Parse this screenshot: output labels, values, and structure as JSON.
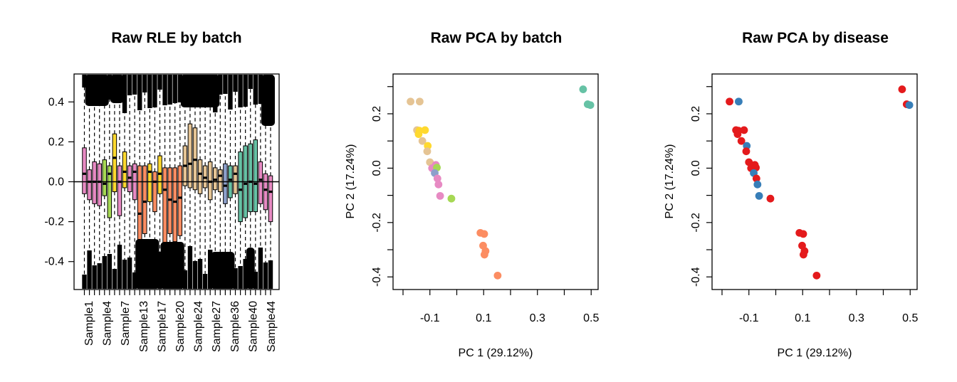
{
  "chart_data": [
    {
      "type": "box",
      "title": "Raw RLE by batch",
      "xlabel": "",
      "ylabel": "",
      "ylim": [
        -0.54,
        0.54
      ],
      "yticks": [
        -0.4,
        -0.2,
        0.0,
        0.2,
        0.4
      ],
      "ytick_labels": [
        "-0.4",
        "-0.2",
        "0.0",
        "0.2",
        "0.4"
      ],
      "xtick_labels": [
        "Sample1",
        "Sample4",
        "Sample7",
        "Sample13",
        "Sample17",
        "Sample20",
        "Sample24",
        "Sample27",
        "Sample36",
        "Sample40",
        "Sample44"
      ],
      "reference_line": 0,
      "boxes": [
        {
          "q1": -0.06,
          "median": 0.04,
          "q3": 0.17,
          "color": "#e78ac3"
        },
        {
          "q1": -0.09,
          "median": 0.0,
          "q3": 0.06,
          "color": "#e78ac3"
        },
        {
          "q1": -0.11,
          "median": 0.0,
          "q3": 0.1,
          "color": "#e78ac3"
        },
        {
          "q1": -0.12,
          "median": 0.0,
          "q3": 0.09,
          "color": "#e78ac3"
        },
        {
          "q1": -0.07,
          "median": -0.01,
          "q3": 0.11,
          "color": "#a6d854"
        },
        {
          "q1": -0.18,
          "median": 0.04,
          "q3": 0.08,
          "color": "#a6d854"
        },
        {
          "q1": -0.05,
          "median": 0.12,
          "q3": 0.24,
          "color": "#ffd92f"
        },
        {
          "q1": -0.17,
          "median": 0.0,
          "q3": 0.08,
          "color": "#e78ac3"
        },
        {
          "q1": -0.03,
          "median": 0.05,
          "q3": 0.15,
          "color": "#ffd92f"
        },
        {
          "q1": -0.05,
          "median": 0.02,
          "q3": 0.08,
          "color": "#e78ac3"
        },
        {
          "q1": -0.09,
          "median": 0.05,
          "q3": 0.09,
          "color": "#e78ac3"
        },
        {
          "q1": -0.37,
          "median": -0.16,
          "q3": 0.08,
          "color": "#fc8d62"
        },
        {
          "q1": -0.26,
          "median": -0.1,
          "q3": 0.08,
          "color": "#fc8d62"
        },
        {
          "q1": -0.1,
          "median": 0.05,
          "q3": 0.09,
          "color": "#ffd92f"
        },
        {
          "q1": -0.15,
          "median": 0.0,
          "q3": 0.05,
          "color": "#fc8d62"
        },
        {
          "q1": -0.06,
          "median": 0.04,
          "q3": 0.13,
          "color": "#ffd92f"
        },
        {
          "q1": -0.34,
          "median": -0.04,
          "q3": 0.07,
          "color": "#fc8d62"
        },
        {
          "q1": -0.26,
          "median": -0.09,
          "q3": 0.07,
          "color": "#fc8d62"
        },
        {
          "q1": -0.3,
          "median": -0.1,
          "q3": 0.07,
          "color": "#fc8d62"
        },
        {
          "q1": -0.27,
          "median": -0.08,
          "q3": 0.08,
          "color": "#fc8d62"
        },
        {
          "q1": -0.02,
          "median": 0.08,
          "q3": 0.18,
          "color": "#e5c494"
        },
        {
          "q1": -0.03,
          "median": 0.09,
          "q3": 0.29,
          "color": "#e5c494"
        },
        {
          "q1": -0.04,
          "median": 0.11,
          "q3": 0.27,
          "color": "#e5c494"
        },
        {
          "q1": -0.06,
          "median": 0.04,
          "q3": 0.11,
          "color": "#e5c494"
        },
        {
          "q1": -0.03,
          "median": 0.02,
          "q3": 0.08,
          "color": "#e5c494"
        },
        {
          "q1": -0.09,
          "median": 0.0,
          "q3": 0.1,
          "color": "#e5c494"
        },
        {
          "q1": -0.04,
          "median": 0.01,
          "q3": 0.07,
          "color": "#e5c494"
        },
        {
          "q1": -0.05,
          "median": 0.03,
          "q3": 0.06,
          "color": "#e5c494"
        },
        {
          "q1": -0.11,
          "median": -0.02,
          "q3": 0.09,
          "color": "#8da0cb"
        },
        {
          "q1": -0.08,
          "median": 0.01,
          "q3": 0.08,
          "color": "#66c2a5"
        },
        {
          "q1": -0.06,
          "median": 0.04,
          "q3": 0.08,
          "color": "#e5c494"
        },
        {
          "q1": -0.2,
          "median": -0.04,
          "q3": 0.15,
          "color": "#66c2a5"
        },
        {
          "q1": -0.18,
          "median": -0.01,
          "q3": 0.18,
          "color": "#66c2a5"
        },
        {
          "q1": -0.15,
          "median": 0.0,
          "q3": 0.19,
          "color": "#66c2a5"
        },
        {
          "q1": -0.15,
          "median": -0.01,
          "q3": 0.21,
          "color": "#66c2a5"
        },
        {
          "q1": -0.11,
          "median": 0.01,
          "q3": 0.1,
          "color": "#e78ac3"
        },
        {
          "q1": -0.14,
          "median": -0.04,
          "q3": 0.04,
          "color": "#e78ac3"
        },
        {
          "q1": -0.2,
          "median": -0.05,
          "q3": 0.03,
          "color": "#e78ac3"
        }
      ]
    },
    {
      "type": "scatter",
      "title": "Raw PCA by batch",
      "xlabel": "PC 1 (29.12%)",
      "ylabel": "PC 2 (17.24%)",
      "xlim": [
        -0.2,
        0.51
      ],
      "ylim": [
        -0.415,
        0.315
      ],
      "xticks": [
        -0.2,
        -0.1,
        0.0,
        0.1,
        0.2,
        0.3,
        0.4,
        0.5
      ],
      "xtick_labels": [
        "",
        "-0.1",
        "",
        "0.1",
        "",
        "0.3",
        "",
        "0.5"
      ],
      "yticks": [
        -0.4,
        -0.3,
        -0.2,
        -0.1,
        0.0,
        0.1,
        0.2,
        0.3
      ],
      "ytick_labels": [
        "-0.4",
        "",
        "-0.2",
        "",
        "0.0",
        "",
        "0.2",
        ""
      ],
      "points": [
        {
          "x": 0.47,
          "y": 0.29,
          "color": "#66c2a5"
        },
        {
          "x": 0.487,
          "y": 0.235,
          "color": "#66c2a5"
        },
        {
          "x": 0.497,
          "y": 0.232,
          "color": "#66c2a5"
        },
        {
          "x": -0.172,
          "y": 0.245,
          "color": "#e5c494"
        },
        {
          "x": -0.138,
          "y": 0.245,
          "color": "#e5c494"
        },
        {
          "x": -0.148,
          "y": 0.14,
          "color": "#e5c494"
        },
        {
          "x": -0.139,
          "y": 0.138,
          "color": "#ffd92f"
        },
        {
          "x": -0.142,
          "y": 0.125,
          "color": "#ffd92f"
        },
        {
          "x": -0.118,
          "y": 0.14,
          "color": "#ffd92f"
        },
        {
          "x": -0.128,
          "y": 0.1,
          "color": "#e5c494"
        },
        {
          "x": -0.108,
          "y": 0.082,
          "color": "#ffd92f"
        },
        {
          "x": -0.11,
          "y": 0.062,
          "color": "#e5c494"
        },
        {
          "x": -0.1,
          "y": 0.022,
          "color": "#e5c494"
        },
        {
          "x": -0.092,
          "y": 0.0,
          "color": "#e78ac3"
        },
        {
          "x": -0.078,
          "y": 0.012,
          "color": "#e78ac3"
        },
        {
          "x": -0.074,
          "y": 0.002,
          "color": "#a6d854"
        },
        {
          "x": -0.082,
          "y": -0.018,
          "color": "#8da0cb"
        },
        {
          "x": -0.072,
          "y": -0.038,
          "color": "#e78ac3"
        },
        {
          "x": -0.068,
          "y": -0.06,
          "color": "#e78ac3"
        },
        {
          "x": -0.062,
          "y": -0.102,
          "color": "#e78ac3"
        },
        {
          "x": -0.02,
          "y": -0.112,
          "color": "#a6d854"
        },
        {
          "x": 0.088,
          "y": -0.238,
          "color": "#fc8d62"
        },
        {
          "x": 0.102,
          "y": -0.242,
          "color": "#fc8d62"
        },
        {
          "x": 0.098,
          "y": -0.285,
          "color": "#fc8d62"
        },
        {
          "x": 0.107,
          "y": -0.305,
          "color": "#fc8d62"
        },
        {
          "x": 0.103,
          "y": -0.318,
          "color": "#fc8d62"
        },
        {
          "x": 0.152,
          "y": -0.395,
          "color": "#fc8d62"
        }
      ]
    },
    {
      "type": "scatter",
      "title": "Raw PCA by disease",
      "xlabel": "PC 1 (29.12%)",
      "ylabel": "PC 2 (17.24%)",
      "xlim": [
        -0.2,
        0.51
      ],
      "ylim": [
        -0.415,
        0.315
      ],
      "xticks": [
        -0.2,
        -0.1,
        0.0,
        0.1,
        0.2,
        0.3,
        0.4,
        0.5
      ],
      "xtick_labels": [
        "",
        "-0.1",
        "",
        "0.1",
        "",
        "0.3",
        "",
        "0.5"
      ],
      "yticks": [
        -0.4,
        -0.3,
        -0.2,
        -0.1,
        0.0,
        0.1,
        0.2,
        0.3
      ],
      "ytick_labels": [
        "-0.4",
        "",
        "-0.2",
        "",
        "0.0",
        "",
        "0.2",
        ""
      ],
      "points": [
        {
          "x": 0.47,
          "y": 0.29,
          "color": "#e41a1c"
        },
        {
          "x": 0.487,
          "y": 0.235,
          "color": "#e41a1c"
        },
        {
          "x": 0.497,
          "y": 0.232,
          "color": "#377eb8"
        },
        {
          "x": -0.172,
          "y": 0.245,
          "color": "#e41a1c"
        },
        {
          "x": -0.138,
          "y": 0.245,
          "color": "#377eb8"
        },
        {
          "x": -0.148,
          "y": 0.14,
          "color": "#e41a1c"
        },
        {
          "x": -0.139,
          "y": 0.138,
          "color": "#e41a1c"
        },
        {
          "x": -0.142,
          "y": 0.125,
          "color": "#e41a1c"
        },
        {
          "x": -0.118,
          "y": 0.14,
          "color": "#e41a1c"
        },
        {
          "x": -0.128,
          "y": 0.1,
          "color": "#e41a1c"
        },
        {
          "x": -0.108,
          "y": 0.082,
          "color": "#377eb8"
        },
        {
          "x": -0.11,
          "y": 0.062,
          "color": "#e41a1c"
        },
        {
          "x": -0.1,
          "y": 0.022,
          "color": "#e41a1c"
        },
        {
          "x": -0.092,
          "y": 0.0,
          "color": "#e41a1c"
        },
        {
          "x": -0.078,
          "y": 0.012,
          "color": "#e41a1c"
        },
        {
          "x": -0.074,
          "y": 0.002,
          "color": "#e41a1c"
        },
        {
          "x": -0.082,
          "y": -0.018,
          "color": "#377eb8"
        },
        {
          "x": -0.072,
          "y": -0.038,
          "color": "#e41a1c"
        },
        {
          "x": -0.068,
          "y": -0.06,
          "color": "#377eb8"
        },
        {
          "x": -0.062,
          "y": -0.102,
          "color": "#377eb8"
        },
        {
          "x": -0.02,
          "y": -0.112,
          "color": "#e41a1c"
        },
        {
          "x": 0.088,
          "y": -0.238,
          "color": "#e41a1c"
        },
        {
          "x": 0.102,
          "y": -0.242,
          "color": "#e41a1c"
        },
        {
          "x": 0.098,
          "y": -0.285,
          "color": "#e41a1c"
        },
        {
          "x": 0.107,
          "y": -0.305,
          "color": "#e41a1c"
        },
        {
          "x": 0.103,
          "y": -0.318,
          "color": "#e41a1c"
        },
        {
          "x": 0.152,
          "y": -0.395,
          "color": "#e41a1c"
        }
      ]
    }
  ]
}
